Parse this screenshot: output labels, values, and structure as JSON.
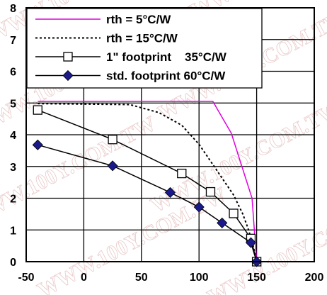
{
  "watermark_text": "WWW.100Y.COM.TW",
  "chart_data": {
    "type": "line",
    "xlim": [
      -50,
      200
    ],
    "ylim": [
      0,
      8
    ],
    "x_ticks": [
      -50,
      0,
      50,
      100,
      150,
      200
    ],
    "y_ticks": [
      0,
      1,
      2,
      3,
      4,
      5,
      6,
      7,
      8
    ],
    "grid": true,
    "legend_position": "top-left",
    "series": [
      {
        "name": "rth = 5°C/W",
        "color": "#e000e0",
        "line": "solid",
        "marker": "none",
        "x": [
          -40,
          112,
          128,
          146,
          150
        ],
        "y": [
          5.05,
          5.05,
          4.05,
          2.0,
          0
        ]
      },
      {
        "name": "rth = 15°C/W",
        "color": "#000000",
        "line": "dotted",
        "marker": "none",
        "x": [
          -40,
          40,
          65,
          85,
          100,
          115,
          130,
          138,
          143,
          147,
          150
        ],
        "y": [
          4.98,
          4.95,
          4.7,
          4.3,
          3.7,
          2.9,
          2.1,
          1.5,
          1.0,
          0.5,
          0
        ]
      },
      {
        "name": "1\" footprint    35°C/W",
        "color": "#000000",
        "line": "solid",
        "marker": "square",
        "x": [
          -40,
          25,
          85,
          110,
          130,
          145,
          150
        ],
        "y": [
          4.78,
          3.85,
          2.78,
          2.2,
          1.52,
          0.73,
          0
        ]
      },
      {
        "name": "std. footprint 60°C/W",
        "color": "#000000",
        "line": "solid",
        "marker": "diamond",
        "marker_color": "#1a1a8c",
        "x": [
          -40,
          25,
          75,
          100,
          120,
          145,
          150
        ],
        "y": [
          3.68,
          3.02,
          2.18,
          1.72,
          1.22,
          0.6,
          0
        ]
      }
    ]
  }
}
